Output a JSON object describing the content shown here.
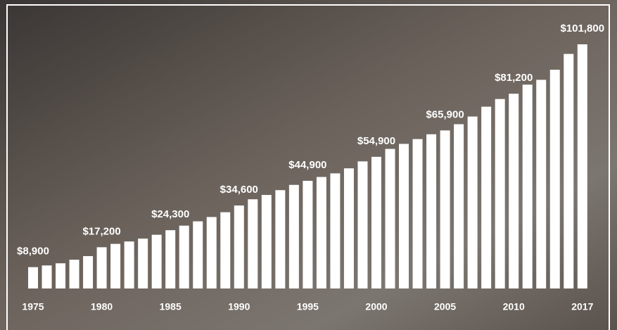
{
  "chart_data": {
    "type": "bar",
    "color": "#ffffff",
    "categories": [
      "1975",
      null,
      null,
      null,
      null,
      "1980",
      null,
      null,
      null,
      null,
      "1985",
      null,
      null,
      null,
      null,
      "1990",
      null,
      null,
      null,
      null,
      "1995",
      null,
      null,
      null,
      null,
      "2000",
      null,
      null,
      null,
      null,
      "2005",
      null,
      null,
      null,
      null,
      "2010",
      null,
      null,
      null,
      null,
      "2017"
    ],
    "values": [
      8900,
      9600,
      10500,
      12000,
      13500,
      17200,
      18600,
      19600,
      20800,
      22400,
      24300,
      26200,
      28000,
      29800,
      31800,
      34600,
      37200,
      39000,
      41000,
      43200,
      44900,
      46500,
      48000,
      50100,
      53000,
      54900,
      58200,
      60300,
      62300,
      64300,
      65900,
      68500,
      71700,
      75800,
      79000,
      81200,
      85000,
      87000,
      91200,
      97800,
      101800
    ],
    "value_labels": [
      "$8,900",
      null,
      null,
      null,
      null,
      "$17,200",
      null,
      null,
      null,
      null,
      "$24,300",
      null,
      null,
      null,
      null,
      "$34,600",
      null,
      null,
      null,
      null,
      "$44,900",
      null,
      null,
      null,
      null,
      "$54,900",
      null,
      null,
      null,
      null,
      "$65,900",
      null,
      null,
      null,
      null,
      "$81,200",
      null,
      null,
      null,
      null,
      "$101,800"
    ]
  }
}
